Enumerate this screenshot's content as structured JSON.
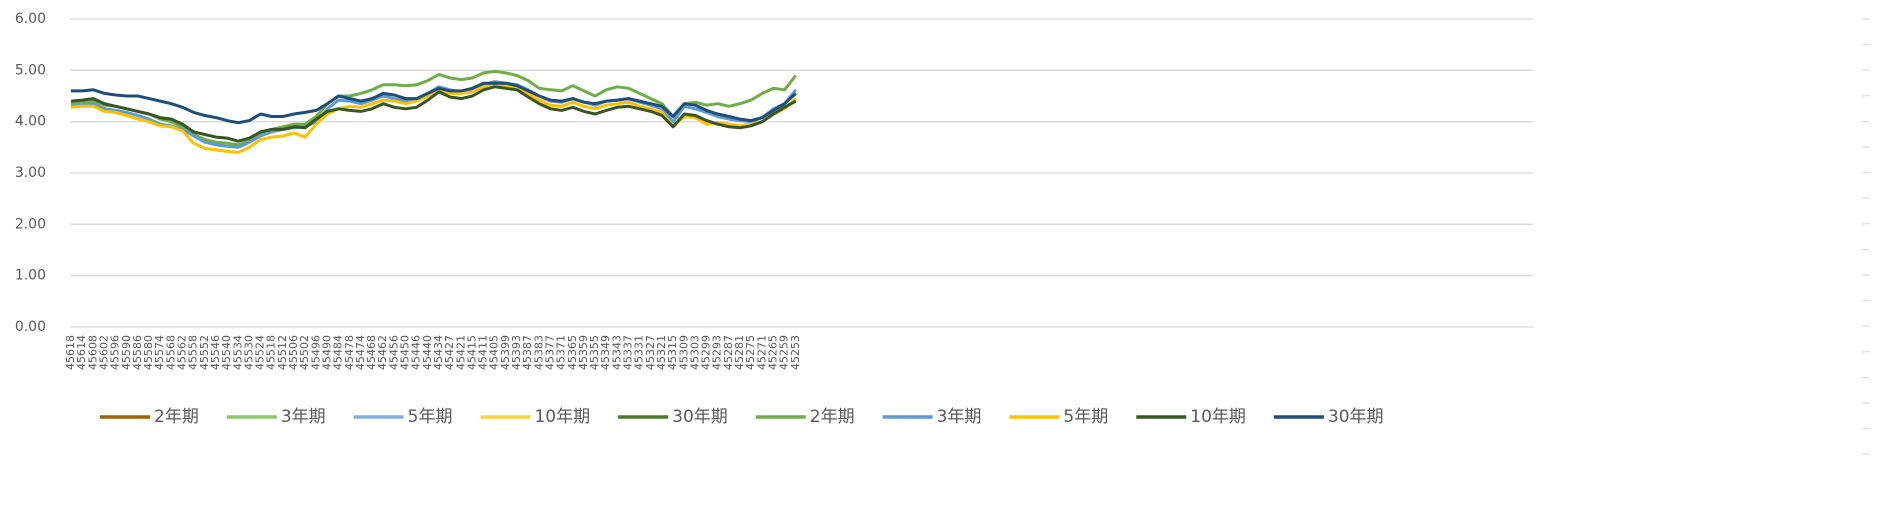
{
  "chart_data": {
    "type": "line",
    "categories": [
      "45618",
      "45614",
      "45608",
      "45602",
      "45596",
      "45590",
      "45586",
      "45580",
      "45574",
      "45568",
      "45562",
      "45558",
      "45552",
      "45546",
      "45540",
      "45534",
      "45530",
      "45524",
      "45518",
      "45512",
      "45506",
      "45502",
      "45496",
      "45490",
      "45484",
      "45478",
      "45474",
      "45468",
      "45462",
      "45456",
      "45450",
      "45446",
      "45440",
      "45434",
      "45427",
      "45421",
      "45415",
      "45411",
      "45405",
      "45399",
      "45393",
      "45387",
      "45383",
      "45377",
      "45371",
      "45365",
      "45359",
      "45355",
      "45349",
      "45343",
      "45337",
      "45331",
      "45327",
      "45321",
      "45315",
      "45309",
      "45303",
      "45299",
      "45293",
      "45287",
      "45281",
      "45275",
      "45271",
      "45265",
      "45259",
      "45253"
    ],
    "ylim": [
      0,
      6
    ],
    "yticks": [
      {
        "value": 0,
        "label": "0.00"
      },
      {
        "value": 1,
        "label": "1.00"
      },
      {
        "value": 2,
        "label": "2.00"
      },
      {
        "value": 3,
        "label": "3.00"
      },
      {
        "value": 4,
        "label": "4.00"
      },
      {
        "value": 5,
        "label": "5.00"
      },
      {
        "value": 6,
        "label": "6.00"
      }
    ],
    "grid": true,
    "legend": "bottom",
    "series": [
      {
        "name": "2年期",
        "color": "#9c6500",
        "values": [
          null,
          null,
          null,
          null,
          null,
          null,
          null,
          null,
          null,
          null,
          null,
          null,
          null,
          null,
          null,
          null,
          null,
          null,
          null,
          null,
          null,
          null,
          null,
          null,
          null,
          null,
          null,
          null,
          null,
          null,
          null,
          null,
          null,
          null,
          null,
          null,
          null,
          null,
          null,
          null,
          null,
          null,
          null,
          null,
          null,
          null,
          null,
          null,
          null,
          null,
          null,
          null,
          null,
          null,
          null,
          null,
          null,
          null,
          null,
          null,
          null,
          null,
          null,
          null,
          null,
          null
        ]
      },
      {
        "name": "3年期",
        "color": "#8fc66a",
        "values": [
          null,
          null,
          null,
          null,
          null,
          null,
          null,
          null,
          null,
          null,
          null,
          null,
          null,
          null,
          null,
          null,
          null,
          null,
          null,
          null,
          null,
          null,
          null,
          null,
          null,
          null,
          null,
          null,
          null,
          null,
          null,
          null,
          null,
          null,
          null,
          null,
          null,
          null,
          null,
          null,
          null,
          null,
          null,
          null,
          null,
          null,
          null,
          null,
          null,
          null,
          null,
          null,
          null,
          null,
          null,
          null,
          null,
          null,
          null,
          null,
          null,
          null,
          null,
          null,
          null,
          null
        ]
      },
      {
        "name": "5年期",
        "color": "#7fb0e0",
        "values": [
          null,
          null,
          null,
          null,
          null,
          null,
          null,
          null,
          null,
          null,
          null,
          null,
          null,
          null,
          null,
          null,
          null,
          null,
          null,
          null,
          null,
          null,
          null,
          null,
          null,
          null,
          null,
          null,
          null,
          null,
          null,
          null,
          null,
          null,
          null,
          null,
          null,
          null,
          null,
          null,
          null,
          null,
          null,
          null,
          null,
          null,
          null,
          null,
          null,
          null,
          null,
          null,
          null,
          null,
          null,
          null,
          null,
          null,
          null,
          null,
          null,
          null,
          null,
          null,
          null,
          null
        ]
      },
      {
        "name": "10年期",
        "color": "#ffd040",
        "values": [
          null,
          null,
          null,
          null,
          null,
          null,
          null,
          null,
          null,
          null,
          null,
          null,
          null,
          null,
          null,
          null,
          null,
          null,
          null,
          null,
          null,
          null,
          null,
          null,
          null,
          null,
          null,
          null,
          null,
          null,
          null,
          null,
          null,
          null,
          null,
          null,
          null,
          null,
          null,
          null,
          null,
          null,
          null,
          null,
          null,
          null,
          null,
          null,
          null,
          null,
          null,
          null,
          null,
          null,
          null,
          null,
          null,
          null,
          null,
          null,
          null,
          null,
          null,
          null,
          null,
          null
        ]
      },
      {
        "name": "30年期",
        "color": "#4e7a2e",
        "values": [
          null,
          null,
          null,
          null,
          null,
          null,
          null,
          null,
          null,
          null,
          null,
          null,
          null,
          null,
          null,
          null,
          null,
          null,
          null,
          null,
          null,
          null,
          null,
          null,
          null,
          null,
          null,
          null,
          null,
          null,
          null,
          null,
          null,
          null,
          null,
          null,
          null,
          null,
          null,
          null,
          null,
          null,
          null,
          null,
          null,
          null,
          null,
          null,
          null,
          null,
          null,
          null,
          null,
          null,
          null,
          null,
          null,
          null,
          null,
          null,
          null,
          null,
          null,
          null,
          null,
          null
        ]
      },
      {
        "name": "2年期",
        "color": "#70ad47",
        "values": [
          4.35,
          4.38,
          4.4,
          4.32,
          4.3,
          4.25,
          4.2,
          4.15,
          4.05,
          4.0,
          3.9,
          3.75,
          3.65,
          3.6,
          3.58,
          3.55,
          3.62,
          3.75,
          3.85,
          3.9,
          3.95,
          3.95,
          4.1,
          4.35,
          4.5,
          4.5,
          4.55,
          4.62,
          4.72,
          4.72,
          4.7,
          4.72,
          4.8,
          4.92,
          4.85,
          4.82,
          4.85,
          4.95,
          4.98,
          4.95,
          4.9,
          4.8,
          4.65,
          4.62,
          4.6,
          4.7,
          4.6,
          4.5,
          4.62,
          4.68,
          4.65,
          4.55,
          4.45,
          4.35,
          4.1,
          4.35,
          4.38,
          4.32,
          4.35,
          4.3,
          4.35,
          4.42,
          4.55,
          4.65,
          4.62,
          4.9
        ]
      },
      {
        "name": "3年期",
        "color": "#5b9bd5",
        "values": [
          4.3,
          4.32,
          4.35,
          4.25,
          4.22,
          4.18,
          4.12,
          4.05,
          3.95,
          3.92,
          3.85,
          3.72,
          3.6,
          3.55,
          3.52,
          3.5,
          3.6,
          3.72,
          3.8,
          3.85,
          3.88,
          3.9,
          4.0,
          4.25,
          4.42,
          4.4,
          4.35,
          4.42,
          4.5,
          4.45,
          4.4,
          4.45,
          4.55,
          4.68,
          4.62,
          4.58,
          4.62,
          4.72,
          4.78,
          4.75,
          4.72,
          4.62,
          4.5,
          4.4,
          4.38,
          4.45,
          4.38,
          4.32,
          4.4,
          4.42,
          4.45,
          4.38,
          4.32,
          4.25,
          4.0,
          4.3,
          4.25,
          4.18,
          4.1,
          4.05,
          4.02,
          4.0,
          4.08,
          4.25,
          4.35,
          4.62
        ]
      },
      {
        "name": "5年期",
        "color": "#ffc000",
        "values": [
          4.28,
          4.3,
          4.3,
          4.2,
          4.18,
          4.12,
          4.05,
          4.0,
          3.92,
          3.9,
          3.82,
          3.58,
          3.48,
          3.45,
          3.42,
          3.4,
          3.5,
          3.65,
          3.7,
          3.72,
          3.78,
          3.7,
          3.95,
          4.15,
          4.25,
          4.3,
          4.28,
          4.35,
          4.42,
          4.4,
          4.35,
          4.4,
          4.5,
          4.62,
          4.55,
          4.55,
          4.58,
          4.68,
          4.72,
          4.7,
          4.68,
          4.55,
          4.42,
          4.32,
          4.3,
          4.38,
          4.3,
          4.25,
          4.32,
          4.35,
          4.38,
          4.3,
          4.25,
          4.18,
          3.9,
          4.1,
          4.08,
          3.95,
          3.98,
          3.95,
          3.92,
          3.95,
          4.0,
          4.15,
          4.25,
          4.45
        ]
      },
      {
        "name": "10年期",
        "color": "#375623",
        "values": [
          4.4,
          4.42,
          4.45,
          4.35,
          4.3,
          4.25,
          4.2,
          4.15,
          4.08,
          4.05,
          3.95,
          3.8,
          3.75,
          3.7,
          3.68,
          3.62,
          3.68,
          3.8,
          3.85,
          3.85,
          3.9,
          3.88,
          4.05,
          4.2,
          4.25,
          4.22,
          4.2,
          4.25,
          4.35,
          4.28,
          4.25,
          4.28,
          4.42,
          4.58,
          4.48,
          4.45,
          4.5,
          4.62,
          4.68,
          4.65,
          4.62,
          4.48,
          4.35,
          4.25,
          4.22,
          4.28,
          4.2,
          4.15,
          4.22,
          4.28,
          4.3,
          4.25,
          4.2,
          4.12,
          3.9,
          4.15,
          4.12,
          4.02,
          3.95,
          3.9,
          3.88,
          3.92,
          4.0,
          4.15,
          4.28,
          4.4
        ]
      },
      {
        "name": "30年期",
        "color": "#1f4e79",
        "values": [
          4.6,
          4.6,
          4.62,
          4.55,
          4.52,
          4.5,
          4.5,
          4.45,
          4.4,
          4.35,
          4.28,
          4.18,
          4.12,
          4.08,
          4.02,
          3.98,
          4.02,
          4.15,
          4.1,
          4.1,
          4.15,
          4.18,
          4.22,
          4.35,
          4.5,
          4.45,
          4.4,
          4.45,
          4.55,
          4.52,
          4.45,
          4.45,
          4.55,
          4.65,
          4.6,
          4.6,
          4.65,
          4.75,
          4.75,
          4.75,
          4.7,
          4.6,
          4.5,
          4.42,
          4.4,
          4.45,
          4.38,
          4.35,
          4.4,
          4.42,
          4.45,
          4.4,
          4.35,
          4.3,
          4.1,
          4.35,
          4.32,
          4.22,
          4.15,
          4.1,
          4.05,
          4.02,
          4.08,
          4.22,
          4.35,
          4.55
        ]
      }
    ]
  }
}
